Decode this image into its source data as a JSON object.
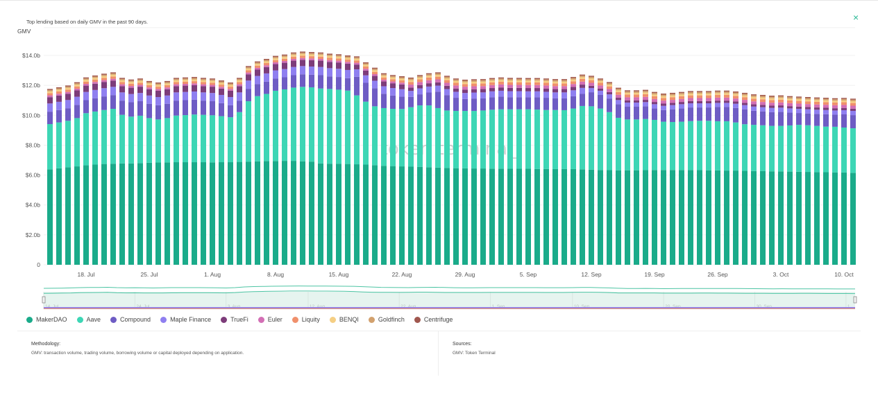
{
  "subtitle": "Top lending based on daily GMV in the past 90 days.",
  "close_icon": "×",
  "watermark": "token terminal_",
  "methodology": {
    "heading": "Methodology:",
    "text": "GMV: transaction volume, trading volume, borrowing volume or capital deployed depending on application."
  },
  "sources": {
    "heading": "Sources:",
    "text": "GMV: Token Terminal"
  },
  "navigator_labels": [
    {
      "index": 0,
      "label": "14. Jul"
    },
    {
      "index": 10,
      "label": "24. Jul"
    },
    {
      "index": 20,
      "label": "3. Aug"
    },
    {
      "index": 29,
      "label": "12. Aug"
    },
    {
      "index": 39,
      "label": "22. Aug"
    },
    {
      "index": 49,
      "label": "1. Sep"
    },
    {
      "index": 58,
      "label": "10. Sep"
    },
    {
      "index": 68,
      "label": "20. Sep"
    },
    {
      "index": 78,
      "label": "30. Sep"
    },
    {
      "index": 88,
      "label": "1"
    }
  ],
  "chart_data": {
    "type": "bar",
    "stacked": true,
    "title": "Top lending based on daily GMV in the past 90 days.",
    "ylabel": "GMV",
    "xlabel": "",
    "ylim": [
      0,
      16
    ],
    "grid": true,
    "legend_placement": "bottom-left",
    "y_ticks": [
      {
        "value": 0,
        "label": "0"
      },
      {
        "value": 2,
        "label": "$2.0b"
      },
      {
        "value": 4,
        "label": "$4.0b"
      },
      {
        "value": 6,
        "label": "$6.0b"
      },
      {
        "value": 8,
        "label": "$8.0b"
      },
      {
        "value": 10,
        "label": "$10.0b"
      },
      {
        "value": 12,
        "label": "$12.0b"
      },
      {
        "value": 14,
        "label": "$14.0b"
      }
    ],
    "x_ticks": [
      {
        "index": 4,
        "label": "18. Jul"
      },
      {
        "index": 11,
        "label": "25. Jul"
      },
      {
        "index": 18,
        "label": "1. Aug"
      },
      {
        "index": 25,
        "label": "8. Aug"
      },
      {
        "index": 32,
        "label": "15. Aug"
      },
      {
        "index": 39,
        "label": "22. Aug"
      },
      {
        "index": 46,
        "label": "29. Aug"
      },
      {
        "index": 53,
        "label": "5. Sep"
      },
      {
        "index": 60,
        "label": "12. Sep"
      },
      {
        "index": 67,
        "label": "19. Sep"
      },
      {
        "index": 74,
        "label": "26. Sep"
      },
      {
        "index": 81,
        "label": "3. Oct"
      },
      {
        "index": 88,
        "label": "10. Oct"
      }
    ],
    "unit": "USD billions",
    "series": [
      {
        "name": "MakerDAO",
        "color": "#1aab8a",
        "values": [
          6.38,
          6.45,
          6.52,
          6.58,
          6.65,
          6.7,
          6.74,
          6.76,
          6.78,
          6.78,
          6.8,
          6.82,
          6.84,
          6.85,
          6.86,
          6.86,
          6.86,
          6.86,
          6.85,
          6.86,
          6.86,
          6.88,
          6.9,
          6.92,
          6.94,
          6.94,
          6.95,
          6.95,
          6.92,
          6.9,
          6.78,
          6.76,
          6.76,
          6.74,
          6.72,
          6.7,
          6.66,
          6.62,
          6.6,
          6.58,
          6.56,
          6.54,
          6.52,
          6.5,
          6.48,
          6.46,
          6.45,
          6.44,
          6.44,
          6.43,
          6.43,
          6.42,
          6.42,
          6.42,
          6.41,
          6.41,
          6.4,
          6.4,
          6.4,
          6.38,
          6.36,
          6.34,
          6.33,
          6.32,
          6.32,
          6.32,
          6.33,
          6.34,
          6.34,
          6.34,
          6.34,
          6.34,
          6.33,
          6.32,
          6.31,
          6.3,
          6.3,
          6.28,
          6.27,
          6.26,
          6.25,
          6.24,
          6.23,
          6.22,
          6.21,
          6.2,
          6.19,
          6.18,
          6.17,
          6.15
        ]
      },
      {
        "name": "Aave",
        "color": "#3dd6b5",
        "values": [
          3.03,
          3.07,
          3.11,
          3.23,
          3.49,
          3.55,
          3.61,
          3.67,
          3.25,
          3.13,
          3.17,
          2.99,
          2.88,
          2.96,
          3.12,
          3.15,
          3.19,
          3.17,
          3.15,
          3.08,
          3.01,
          3.33,
          4.04,
          4.36,
          4.49,
          4.7,
          4.78,
          4.9,
          4.98,
          4.97,
          5.01,
          5.0,
          4.95,
          4.91,
          4.61,
          4.21,
          3.94,
          3.86,
          3.83,
          3.84,
          3.98,
          4.12,
          4.14,
          3.98,
          3.84,
          3.83,
          3.84,
          3.85,
          3.88,
          3.94,
          3.97,
          3.98,
          3.98,
          3.98,
          3.97,
          3.94,
          3.95,
          3.94,
          4.05,
          4.24,
          4.24,
          4.11,
          3.88,
          3.51,
          3.4,
          3.4,
          3.42,
          3.35,
          3.23,
          3.21,
          3.23,
          3.27,
          3.3,
          3.31,
          3.29,
          3.3,
          3.22,
          3.12,
          3.09,
          3.07,
          3.04,
          3.05,
          3.09,
          3.14,
          3.12,
          3.09,
          3.05,
          3.05,
          3.01,
          2.98
        ]
      },
      {
        "name": "Compound",
        "color": "#6e5cc4",
        "values": [
          0.83,
          0.83,
          0.84,
          0.88,
          0.87,
          0.89,
          0.91,
          0.92,
          0.95,
          0.96,
          0.97,
          0.96,
          0.95,
          0.96,
          1.0,
          1.0,
          0.99,
          0.95,
          0.94,
          0.87,
          0.8,
          0.77,
          0.83,
          0.8,
          0.82,
          0.81,
          0.81,
          0.83,
          0.84,
          0.84,
          0.89,
          0.84,
          0.85,
          0.83,
          1.24,
          1.26,
          1.21,
          0.96,
          0.89,
          0.82,
          0.69,
          0.74,
          0.86,
          1.1,
          1.03,
          0.88,
          0.8,
          0.83,
          0.81,
          0.83,
          0.84,
          0.81,
          0.81,
          0.8,
          0.82,
          0.82,
          0.78,
          0.79,
          0.82,
          0.81,
          0.94,
          0.91,
          0.91,
          0.91,
          0.85,
          0.85,
          0.85,
          0.77,
          0.78,
          0.85,
          0.89,
          0.91,
          0.89,
          0.89,
          0.95,
          0.95,
          0.97,
          1.0,
          0.94,
          0.93,
          0.92,
          0.94,
          0.86,
          0.79,
          0.79,
          0.8,
          0.83,
          0.81,
          0.88,
          0.88
        ]
      },
      {
        "name": "Maple Finance",
        "color": "#8f7ff0",
        "values": [
          0.55,
          0.55,
          0.55,
          0.55,
          0.55,
          0.55,
          0.55,
          0.55,
          0.55,
          0.55,
          0.55,
          0.55,
          0.55,
          0.55,
          0.55,
          0.55,
          0.55,
          0.55,
          0.55,
          0.55,
          0.55,
          0.55,
          0.55,
          0.55,
          0.55,
          0.55,
          0.55,
          0.55,
          0.55,
          0.55,
          0.55,
          0.55,
          0.55,
          0.55,
          0.5,
          0.5,
          0.5,
          0.5,
          0.5,
          0.5,
          0.4,
          0.4,
          0.4,
          0.4,
          0.4,
          0.4,
          0.4,
          0.4,
          0.4,
          0.4,
          0.4,
          0.4,
          0.4,
          0.4,
          0.4,
          0.4,
          0.4,
          0.4,
          0.4,
          0.4,
          0.28,
          0.28,
          0.28,
          0.28,
          0.28,
          0.28,
          0.28,
          0.28,
          0.28,
          0.28,
          0.28,
          0.28,
          0.28,
          0.28,
          0.28,
          0.28,
          0.28,
          0.28,
          0.28,
          0.28,
          0.28,
          0.28,
          0.28,
          0.28,
          0.28,
          0.28,
          0.28,
          0.28,
          0.28,
          0.28
        ]
      },
      {
        "name": "TrueFi",
        "color": "#7d3c7a",
        "values": [
          0.42,
          0.42,
          0.42,
          0.42,
          0.42,
          0.42,
          0.42,
          0.42,
          0.42,
          0.42,
          0.42,
          0.42,
          0.42,
          0.42,
          0.42,
          0.42,
          0.42,
          0.42,
          0.42,
          0.42,
          0.42,
          0.42,
          0.42,
          0.42,
          0.42,
          0.42,
          0.42,
          0.42,
          0.42,
          0.42,
          0.42,
          0.42,
          0.42,
          0.42,
          0.32,
          0.32,
          0.32,
          0.32,
          0.32,
          0.32,
          0.22,
          0.22,
          0.22,
          0.22,
          0.22,
          0.22,
          0.22,
          0.22,
          0.22,
          0.22,
          0.22,
          0.22,
          0.22,
          0.22,
          0.22,
          0.22,
          0.22,
          0.22,
          0.22,
          0.22,
          0.15,
          0.15,
          0.15,
          0.15,
          0.15,
          0.15,
          0.15,
          0.15,
          0.15,
          0.15,
          0.15,
          0.15,
          0.15,
          0.15,
          0.15,
          0.15,
          0.15,
          0.15,
          0.15,
          0.15,
          0.15,
          0.15,
          0.15,
          0.15,
          0.15,
          0.15,
          0.15,
          0.15,
          0.15,
          0.15
        ]
      },
      {
        "name": "Euler",
        "color": "#d36fb5",
        "values": [
          0.12,
          0.12,
          0.12,
          0.12,
          0.12,
          0.12,
          0.12,
          0.12,
          0.12,
          0.12,
          0.12,
          0.12,
          0.12,
          0.12,
          0.12,
          0.12,
          0.12,
          0.12,
          0.12,
          0.12,
          0.12,
          0.12,
          0.12,
          0.12,
          0.12,
          0.12,
          0.12,
          0.12,
          0.12,
          0.12,
          0.12,
          0.12,
          0.12,
          0.12,
          0.12,
          0.12,
          0.12,
          0.12,
          0.12,
          0.12,
          0.2,
          0.2,
          0.2,
          0.2,
          0.2,
          0.2,
          0.2,
          0.2,
          0.2,
          0.2,
          0.2,
          0.2,
          0.2,
          0.2,
          0.2,
          0.2,
          0.2,
          0.2,
          0.2,
          0.2,
          0.2,
          0.2,
          0.2,
          0.2,
          0.2,
          0.2,
          0.2,
          0.2,
          0.2,
          0.2,
          0.2,
          0.2,
          0.2,
          0.2,
          0.2,
          0.2,
          0.2,
          0.2,
          0.2,
          0.2,
          0.2,
          0.2,
          0.2,
          0.2,
          0.2,
          0.2,
          0.2,
          0.2,
          0.2,
          0.2
        ]
      },
      {
        "name": "Liquity",
        "color": "#f0906c",
        "values": [
          0.15,
          0.15,
          0.15,
          0.15,
          0.15,
          0.15,
          0.15,
          0.15,
          0.15,
          0.15,
          0.15,
          0.15,
          0.15,
          0.15,
          0.15,
          0.15,
          0.15,
          0.15,
          0.15,
          0.15,
          0.15,
          0.15,
          0.15,
          0.15,
          0.15,
          0.15,
          0.15,
          0.15,
          0.15,
          0.15,
          0.15,
          0.15,
          0.15,
          0.15,
          0.15,
          0.15,
          0.15,
          0.15,
          0.15,
          0.15,
          0.18,
          0.18,
          0.18,
          0.18,
          0.18,
          0.18,
          0.18,
          0.18,
          0.18,
          0.18,
          0.18,
          0.18,
          0.18,
          0.18,
          0.18,
          0.18,
          0.18,
          0.18,
          0.18,
          0.18,
          0.18,
          0.18,
          0.18,
          0.18,
          0.18,
          0.18,
          0.18,
          0.18,
          0.18,
          0.18,
          0.18,
          0.18,
          0.18,
          0.18,
          0.18,
          0.18,
          0.18,
          0.18,
          0.18,
          0.18,
          0.18,
          0.18,
          0.18,
          0.18,
          0.18,
          0.18,
          0.18,
          0.18,
          0.18,
          0.18
        ]
      },
      {
        "name": "BENQI",
        "color": "#f5cf84",
        "values": [
          0.12,
          0.12,
          0.12,
          0.12,
          0.12,
          0.12,
          0.12,
          0.12,
          0.12,
          0.12,
          0.12,
          0.12,
          0.12,
          0.12,
          0.12,
          0.12,
          0.12,
          0.12,
          0.12,
          0.12,
          0.12,
          0.12,
          0.12,
          0.12,
          0.12,
          0.12,
          0.12,
          0.12,
          0.12,
          0.12,
          0.12,
          0.12,
          0.12,
          0.12,
          0.12,
          0.12,
          0.12,
          0.12,
          0.12,
          0.12,
          0.12,
          0.12,
          0.12,
          0.12,
          0.12,
          0.12,
          0.12,
          0.12,
          0.12,
          0.12,
          0.12,
          0.12,
          0.12,
          0.12,
          0.12,
          0.12,
          0.12,
          0.12,
          0.12,
          0.12,
          0.12,
          0.12,
          0.12,
          0.12,
          0.12,
          0.12,
          0.12,
          0.12,
          0.12,
          0.12,
          0.12,
          0.12,
          0.12,
          0.12,
          0.12,
          0.12,
          0.12,
          0.12,
          0.12,
          0.12,
          0.12,
          0.12,
          0.12,
          0.12,
          0.12,
          0.12,
          0.12,
          0.12,
          0.12,
          0.12
        ]
      },
      {
        "name": "Goldfinch",
        "color": "#d2a16e",
        "values": [
          0.09,
          0.09,
          0.09,
          0.09,
          0.09,
          0.09,
          0.09,
          0.09,
          0.09,
          0.09,
          0.09,
          0.09,
          0.09,
          0.09,
          0.09,
          0.09,
          0.09,
          0.09,
          0.09,
          0.09,
          0.09,
          0.09,
          0.09,
          0.09,
          0.09,
          0.09,
          0.09,
          0.09,
          0.09,
          0.09,
          0.09,
          0.09,
          0.09,
          0.09,
          0.09,
          0.09,
          0.09,
          0.09,
          0.09,
          0.09,
          0.1,
          0.1,
          0.1,
          0.1,
          0.1,
          0.1,
          0.1,
          0.1,
          0.1,
          0.1,
          0.1,
          0.1,
          0.1,
          0.1,
          0.1,
          0.1,
          0.1,
          0.1,
          0.1,
          0.1,
          0.1,
          0.1,
          0.1,
          0.1,
          0.1,
          0.1,
          0.1,
          0.1,
          0.1,
          0.1,
          0.1,
          0.1,
          0.1,
          0.1,
          0.1,
          0.1,
          0.1,
          0.1,
          0.1,
          0.1,
          0.1,
          0.1,
          0.1,
          0.1,
          0.1,
          0.1,
          0.1,
          0.1,
          0.1,
          0.1
        ]
      },
      {
        "name": "Centrifuge",
        "color": "#a0574e",
        "values": [
          0.07,
          0.07,
          0.07,
          0.07,
          0.07,
          0.07,
          0.07,
          0.07,
          0.07,
          0.07,
          0.07,
          0.07,
          0.07,
          0.07,
          0.07,
          0.07,
          0.07,
          0.07,
          0.07,
          0.07,
          0.07,
          0.07,
          0.07,
          0.07,
          0.07,
          0.07,
          0.07,
          0.07,
          0.07,
          0.07,
          0.07,
          0.07,
          0.07,
          0.07,
          0.07,
          0.07,
          0.07,
          0.07,
          0.07,
          0.07,
          0.07,
          0.07,
          0.07,
          0.07,
          0.07,
          0.07,
          0.07,
          0.07,
          0.07,
          0.07,
          0.07,
          0.07,
          0.07,
          0.07,
          0.07,
          0.07,
          0.07,
          0.07,
          0.07,
          0.07,
          0.07,
          0.07,
          0.07,
          0.07,
          0.07,
          0.07,
          0.07,
          0.07,
          0.07,
          0.07,
          0.07,
          0.07,
          0.07,
          0.07,
          0.07,
          0.07,
          0.07,
          0.07,
          0.07,
          0.07,
          0.07,
          0.07,
          0.07,
          0.07,
          0.07,
          0.07,
          0.07,
          0.07,
          0.07,
          0.07
        ]
      }
    ]
  }
}
